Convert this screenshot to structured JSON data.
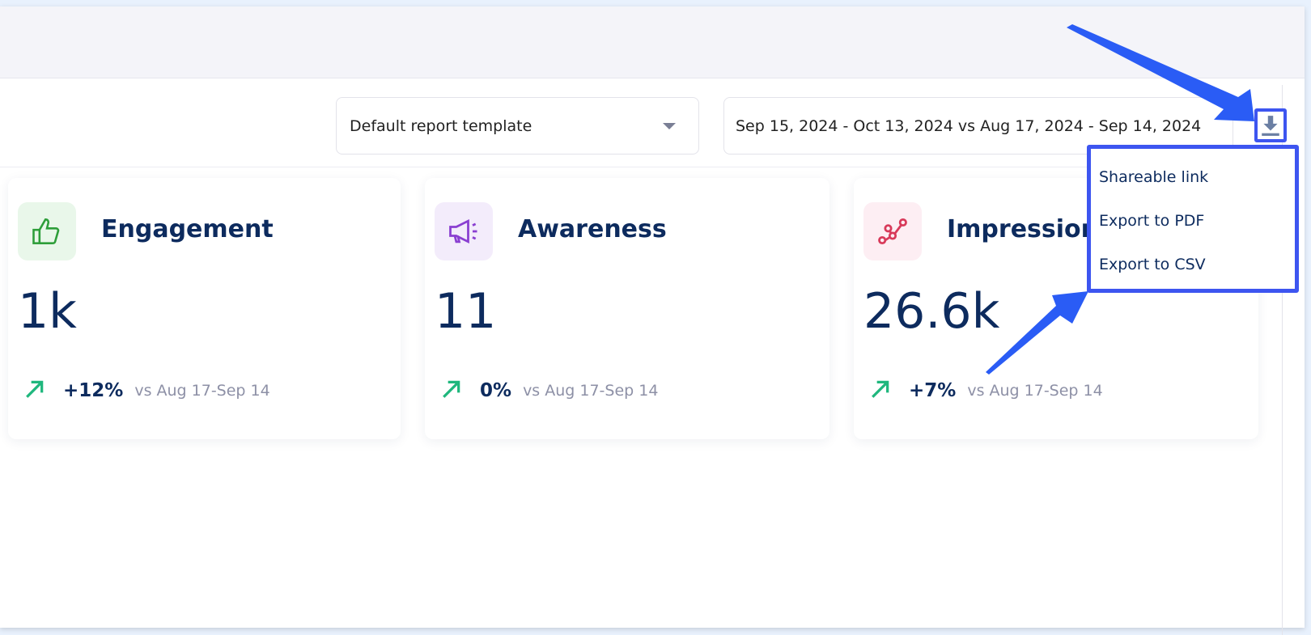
{
  "toolbar": {
    "template_select": "Default report template",
    "date_range": "Sep 15, 2024 - Oct 13, 2024 vs Aug 17, 2024 - Sep 14, 2024",
    "download_icon": "download-icon"
  },
  "export_menu": {
    "items": [
      "Shareable link",
      "Export to PDF",
      "Export to CSV"
    ]
  },
  "cards": [
    {
      "title": "Engagement",
      "value": "1k",
      "change": "+12%",
      "compare": "vs Aug 17-Sep 14",
      "icon": "thumbs-up-icon",
      "color": "#2e9e3a"
    },
    {
      "title": "Awareness",
      "value": "11",
      "change": "0%",
      "compare": "vs Aug 17-Sep 14",
      "icon": "megaphone-icon",
      "color": "#8a3fd1"
    },
    {
      "title": "Impressions",
      "value": "26.6k",
      "change": "+7%",
      "compare": "vs Aug 17-Sep 14",
      "icon": "share-nodes-icon",
      "color": "#d83a5a"
    }
  ],
  "colors": {
    "annotation": "#2a5cf5",
    "trend_up": "#1fb77d",
    "text": "#0d2b5e"
  }
}
